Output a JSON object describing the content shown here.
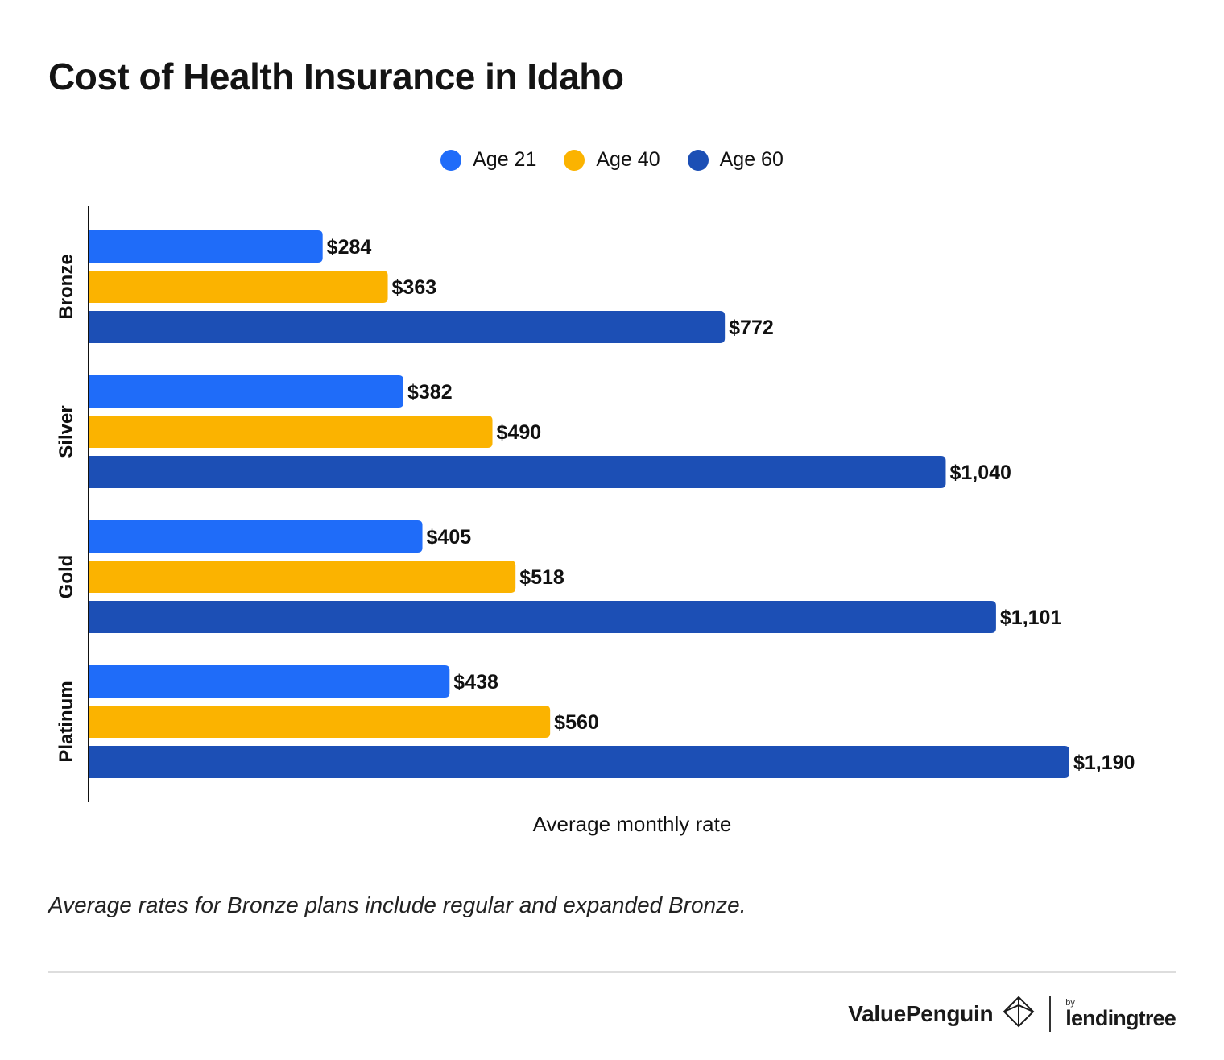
{
  "title": "Cost of Health Insurance in Idaho",
  "legend": [
    {
      "label": "Age 21",
      "color": "#1f6cf9"
    },
    {
      "label": "Age 40",
      "color": "#fbb300"
    },
    {
      "label": "Age 60",
      "color": "#1c4fb5"
    }
  ],
  "chart_data": {
    "type": "bar",
    "orientation": "horizontal",
    "categories": [
      "Bronze",
      "Silver",
      "Gold",
      "Platinum"
    ],
    "series": [
      {
        "name": "Age 21",
        "color": "#1f6cf9",
        "values": [
          284,
          382,
          405,
          438
        ],
        "labels": [
          "$284",
          "$382",
          "$405",
          "$438"
        ]
      },
      {
        "name": "Age 40",
        "color": "#fbb300",
        "values": [
          363,
          490,
          518,
          560
        ],
        "labels": [
          "$363",
          "$490",
          "$518",
          "$560"
        ]
      },
      {
        "name": "Age 60",
        "color": "#1c4fb5",
        "values": [
          772,
          1040,
          1101,
          1190
        ],
        "labels": [
          "$772",
          "$1,040",
          "$1,101",
          "$1,190"
        ]
      }
    ],
    "xlabel": "Average monthly rate",
    "ylabel": "",
    "xlim": [
      0,
      1190
    ],
    "grid": false,
    "legend_position": "top-center"
  },
  "footnote": "Average rates for Bronze plans include regular and expanded Bronze.",
  "branding": {
    "valuepenguin": "ValuePenguin",
    "by": "by",
    "lendingtree": "lendingtree"
  }
}
